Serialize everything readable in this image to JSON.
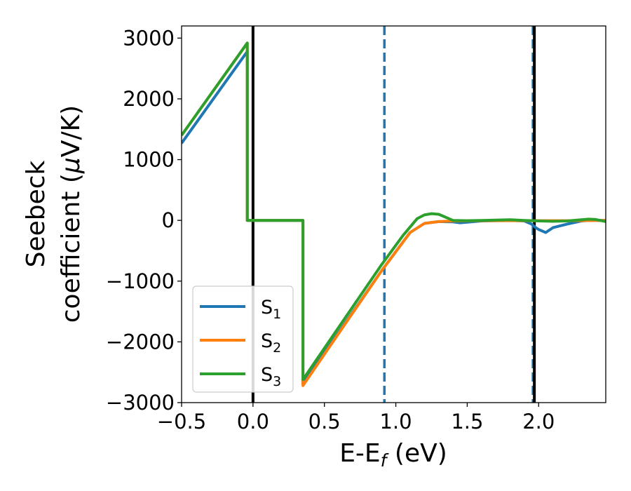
{
  "chart_data": {
    "type": "line",
    "title": "",
    "xlabel": "E-E",
    "xlabel_subscript": "f",
    "xlabel_unit": " (eV)",
    "ylabel_line1": "Seebeck",
    "ylabel_line2": "coefficient  (",
    "ylabel_mu": "μ",
    "ylabel_unit": "V/K)",
    "xlim": [
      -0.5,
      2.47
    ],
    "ylim": [
      -3000,
      3200
    ],
    "xticks": [
      -0.5,
      0.0,
      0.5,
      1.0,
      1.5,
      2.0
    ],
    "xtick_labels": [
      "−0.5",
      "0.0",
      "0.5",
      "1.0",
      "1.5",
      "2.0"
    ],
    "yticks": [
      -3000,
      -2000,
      -1000,
      0,
      1000,
      2000,
      3000
    ],
    "ytick_labels": [
      "−3000",
      "−2000",
      "−1000",
      "0",
      "1000",
      "2000",
      "3000"
    ],
    "grid": false,
    "legend_position": "lower-left",
    "series": [
      {
        "name": "S",
        "sub": "1",
        "color": "#1f77b4",
        "x": [
          -0.5,
          -0.04,
          -0.04,
          0.35,
          0.35,
          0.9,
          1.1,
          1.2,
          1.3,
          1.4,
          1.45,
          1.5,
          1.55,
          1.6,
          1.7,
          1.8,
          1.9,
          1.95,
          1.98,
          2.0,
          2.05,
          2.1,
          2.2,
          2.3,
          2.35,
          2.4,
          2.47
        ],
        "y": [
          1270,
          2780,
          0,
          0,
          -2690,
          -830,
          -200,
          -50,
          -20,
          -25,
          -40,
          -30,
          -20,
          -10,
          -5,
          0,
          -10,
          -60,
          -120,
          -150,
          -200,
          -120,
          -60,
          -10,
          0,
          0,
          0
        ]
      },
      {
        "name": "S",
        "sub": "2",
        "color": "#ff7f0e",
        "x": [
          -0.5,
          -0.04,
          -0.04,
          0.35,
          0.35,
          0.9,
          1.1,
          1.2,
          1.3,
          1.4,
          1.6,
          1.8,
          2.0,
          2.2,
          2.47
        ],
        "y": [
          1400,
          2920,
          0,
          0,
          -2720,
          -830,
          -200,
          -50,
          -20,
          -10,
          -5,
          -5,
          -5,
          -5,
          0
        ]
      },
      {
        "name": "S",
        "sub": "3",
        "color": "#2ca02c",
        "x": [
          -0.5,
          -0.04,
          -0.04,
          0.35,
          0.35,
          0.9,
          1.05,
          1.15,
          1.2,
          1.25,
          1.3,
          1.35,
          1.4,
          1.5,
          1.6,
          1.7,
          1.8,
          1.9,
          2.0,
          2.1,
          2.2,
          2.3,
          2.35,
          2.4,
          2.47
        ],
        "y": [
          1400,
          2920,
          0,
          0,
          -2620,
          -730,
          -250,
          30,
          90,
          110,
          100,
          50,
          0,
          -5,
          0,
          5,
          10,
          0,
          -10,
          -15,
          -10,
          10,
          20,
          15,
          -20
        ]
      }
    ],
    "vlines": [
      {
        "x": 0.0,
        "color": "#000000",
        "style": "solid"
      },
      {
        "x": 0.92,
        "color": "#1f77b4",
        "style": "dashed"
      },
      {
        "x": 1.96,
        "color": "#1f77b4",
        "style": "dashed"
      },
      {
        "x": 1.97,
        "color": "#000000",
        "style": "solid"
      }
    ]
  }
}
